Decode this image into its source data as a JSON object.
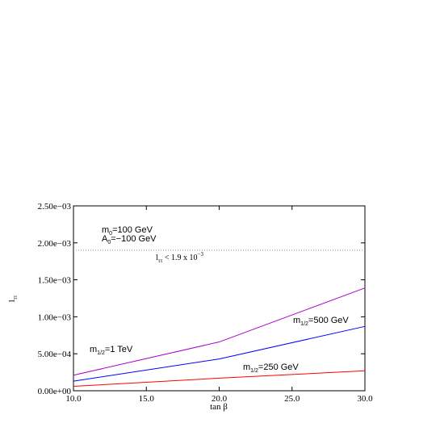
{
  "chart_data": {
    "type": "line",
    "xlabel": "tan β",
    "ylabel": "l",
    "ylabel_sub": "ττ",
    "xlim": [
      10,
      30
    ],
    "ylim": [
      0,
      0.0025
    ],
    "x_ticks": [
      10,
      15,
      20,
      25,
      30
    ],
    "x_tick_labels": [
      "10.0",
      "15.0",
      "20.0",
      "25.0",
      "30.0"
    ],
    "y_ticks": [
      0,
      0.0005,
      0.001,
      0.0015,
      0.002,
      0.0025
    ],
    "y_tick_labels": [
      "0.00e+00",
      "5.00e−04",
      "1.00e−03",
      "1.50e−03",
      "2.00e−03",
      "2.50e−03"
    ],
    "grid": false,
    "series": [
      {
        "name": "m1/2=1 TeV",
        "color": "#aa00cc",
        "x": [
          10,
          20,
          30
        ],
        "y": [
          0.00021,
          0.00066,
          0.00139
        ]
      },
      {
        "name": "m1/2=500 GeV",
        "color": "#0000ff",
        "x": [
          10,
          20,
          30
        ],
        "y": [
          0.00013,
          0.00043,
          0.00087
        ]
      },
      {
        "name": "m1/2=250 GeV",
        "color": "#ff0000",
        "x": [
          10,
          20,
          30
        ],
        "y": [
          6e-05,
          0.00017,
          0.00027
        ]
      }
    ],
    "reference_line": {
      "y": 0.0019,
      "style": "dotted",
      "color": "#888888"
    },
    "annotations": {
      "m0": {
        "main": "m",
        "sub": "0",
        "rest": "=100 GeV"
      },
      "a0": {
        "main": "A",
        "sub": "0",
        "rest": "=−100 GeV"
      },
      "bound": {
        "main": "l",
        "sub": "ττ",
        "rest": " < 1.9 x 10",
        "sup": "−3"
      },
      "series_1tev": {
        "main": "m",
        "sub": "1/2",
        "rest": "=1 TeV"
      },
      "series_500": {
        "main": "m",
        "sub": "1/2",
        "rest": "=500 GeV"
      },
      "series_250": {
        "main": "m",
        "sub": "1/2",
        "rest": "=250 GeV"
      }
    }
  }
}
